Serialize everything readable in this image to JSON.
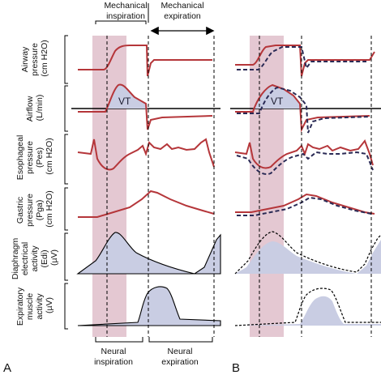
{
  "header": {
    "mech_insp_1": "Mechanical",
    "mech_insp_2": "inspiration",
    "mech_exp_1": "Mechanical",
    "mech_exp_2": "expiration"
  },
  "footer": {
    "neural_insp_1": "Neural",
    "neural_insp_2": "inspiration",
    "neural_exp_1": "Neural",
    "neural_exp_2": "expiration"
  },
  "rows": [
    {
      "lines": [
        "Airway",
        "pressure",
        "(cm H2O)"
      ]
    },
    {
      "lines": [
        "Airflow",
        "(L/min)"
      ]
    },
    {
      "lines": [
        "Esophageal",
        "pressure",
        "(Pes)",
        "(cm H2O)"
      ]
    },
    {
      "lines": [
        "Gastric",
        "pressure",
        "(Pga)",
        "(cm H2O)"
      ]
    },
    {
      "lines": [
        "Diaphragm",
        "electrical",
        "activity",
        "(Edi)",
        "(µV)"
      ]
    },
    {
      "lines": [
        "Expiratory",
        "muscle",
        "activity",
        "(µV)"
      ]
    }
  ],
  "panel_a_label": "A",
  "panel_b_label": "B",
  "vt_label_a": "VT",
  "vt_label_b": "VT",
  "colors": {
    "trace": "#b5363a",
    "fill": "#c9cde3",
    "band": "#e4c8d2",
    "dashed": "#2a2a55"
  }
}
